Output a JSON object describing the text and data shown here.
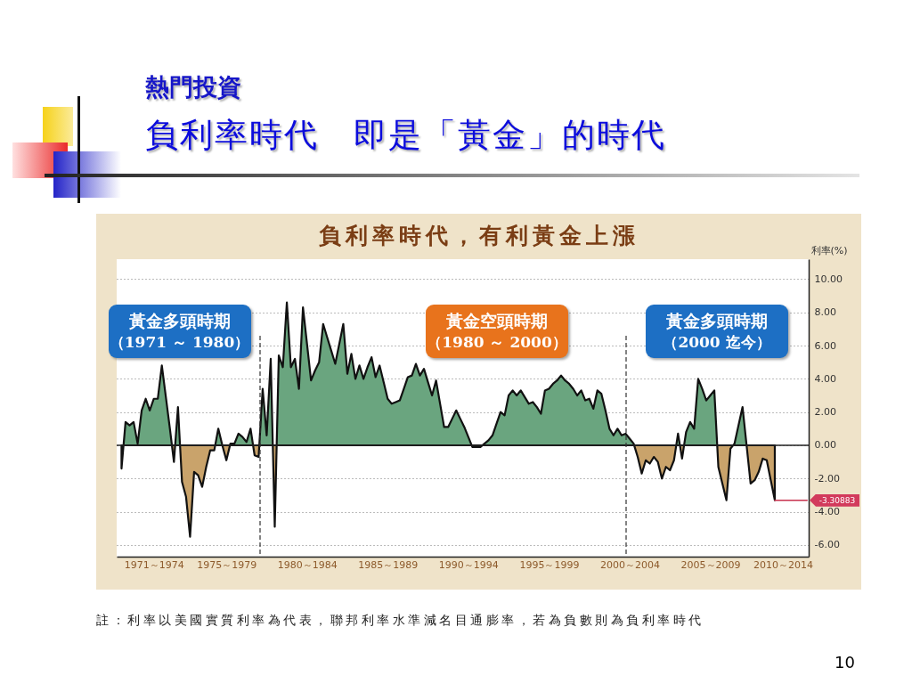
{
  "chart_data": {
    "type": "area",
    "title": "負利率時代　即是「黃金」的時代",
    "subtitle": "負利率時代，有利黃金上漲",
    "ylabel": "利率(%)",
    "categories": [
      null,
      null,
      null,
      null,
      null,
      null,
      null,
      null,
      "1971～1974",
      null,
      null,
      null,
      null,
      null,
      null,
      null,
      null,
      null,
      null,
      null,
      null,
      null,
      null,
      null,
      null,
      null,
      "1975～1979",
      null,
      null,
      null,
      null,
      null,
      null,
      null,
      null,
      null,
      null,
      null,
      null,
      null,
      null,
      null,
      null,
      null,
      null,
      null,
      "1980～1984",
      null,
      null,
      null,
      null,
      null,
      null,
      null,
      null,
      null,
      null,
      null,
      null,
      null,
      null,
      null,
      null,
      null,
      null,
      null,
      "1985～1989",
      null,
      null,
      null,
      null,
      null,
      null,
      null,
      null,
      null,
      null,
      null,
      null,
      null,
      null,
      null,
      null,
      null,
      null,
      null,
      "1990～1994",
      null,
      null,
      null,
      null,
      null,
      null,
      null,
      null,
      null,
      null,
      null,
      null,
      null,
      null,
      null,
      null,
      null,
      null,
      null,
      "1995～1999",
      null,
      null,
      null,
      null,
      null,
      null,
      null,
      null,
      null,
      null,
      null,
      null,
      null,
      null,
      null,
      null,
      null,
      null,
      null,
      "2000～2004",
      null,
      null,
      null,
      null,
      null,
      null,
      null,
      null,
      null,
      null,
      null,
      null,
      null,
      null,
      null,
      null,
      null,
      null,
      null,
      "2005～2009",
      null,
      null,
      null,
      null,
      null,
      null,
      null,
      null,
      null,
      null,
      null,
      null,
      null,
      null,
      null,
      null,
      null,
      "2010～2014",
      null,
      null,
      null,
      null,
      null,
      null
    ],
    "ylim": [
      -6.7,
      11.2
    ],
    "yticks": [
      {
        "value": -6,
        "label": "-6.00"
      },
      {
        "value": -4,
        "label": "-4.00"
      },
      {
        "value": -2,
        "label": "-2.00"
      },
      {
        "value": 0,
        "label": "0.00"
      },
      {
        "value": 2,
        "label": "2.00"
      },
      {
        "value": 4,
        "label": "4.00"
      },
      {
        "value": 6,
        "label": "6.00"
      },
      {
        "value": 8,
        "label": "8.00"
      },
      {
        "value": 10,
        "label": "10.00"
      }
    ],
    "grid": "y",
    "series": [
      {
        "color": "#111111",
        "colors": [
          "#c9a36b",
          "#6aa57f",
          "#6aa57f",
          "#6aa57f",
          "#6aa57f",
          "#6aa57f",
          "#6aa57f",
          "#6aa57f",
          "#6aa57f",
          "#6aa57f",
          "#6aa57f",
          "#6aa57f",
          "#6aa57f",
          "#c9a36b",
          "#6aa57f",
          "#c9a36b",
          "#c9a36b",
          "#c9a36b",
          "#c9a36b",
          "#c9a36b",
          "#c9a36b",
          "#c9a36b",
          "#c9a36b",
          "#c9a36b",
          "#6aa57f",
          "#c9a36b",
          "#c9a36b",
          "#6aa57f",
          "#6aa57f",
          "#6aa57f",
          "#6aa57f",
          "#6aa57f",
          "#6aa57f",
          "#c9a36b",
          "#c9a36b",
          "#6aa57f",
          "#6aa57f",
          "#6aa57f",
          "#c9a36b",
          "#6aa57f",
          "#6aa57f",
          "#6aa57f",
          "#6aa57f",
          "#6aa57f",
          "#6aa57f",
          "#6aa57f",
          "#6aa57f",
          "#6aa57f",
          "#6aa57f",
          "#6aa57f",
          "#6aa57f",
          "#6aa57f",
          "#6aa57f",
          "#6aa57f",
          "#6aa57f",
          "#6aa57f",
          "#6aa57f",
          "#6aa57f",
          "#6aa57f",
          "#6aa57f",
          "#6aa57f",
          "#6aa57f",
          "#6aa57f",
          "#6aa57f",
          "#6aa57f",
          "#6aa57f",
          "#6aa57f",
          "#6aa57f",
          "#6aa57f",
          "#6aa57f",
          "#6aa57f",
          "#6aa57f",
          "#6aa57f",
          "#6aa57f",
          "#6aa57f",
          "#6aa57f",
          "#6aa57f",
          "#6aa57f",
          "#6aa57f",
          "#6aa57f",
          "#6aa57f",
          "#6aa57f",
          "#6aa57f",
          "#6aa57f",
          "#6aa57f",
          "#6aa57f",
          "#6aa57f",
          "#c9a36b",
          "#c9a36b",
          "#c9a36b",
          "#6aa57f",
          "#6aa57f",
          "#6aa57f",
          "#6aa57f",
          "#6aa57f",
          "#6aa57f",
          "#6aa57f",
          "#6aa57f",
          "#6aa57f",
          "#6aa57f",
          "#6aa57f",
          "#6aa57f",
          "#6aa57f",
          "#6aa57f",
          "#6aa57f",
          "#6aa57f",
          "#6aa57f",
          "#6aa57f",
          "#6aa57f",
          "#6aa57f",
          "#6aa57f",
          "#6aa57f",
          "#6aa57f",
          "#6aa57f",
          "#6aa57f",
          "#6aa57f",
          "#6aa57f",
          "#6aa57f",
          "#6aa57f",
          "#6aa57f",
          "#6aa57f",
          "#6aa57f",
          "#6aa57f",
          "#6aa57f",
          "#6aa57f",
          "#6aa57f",
          "#6aa57f",
          "#6aa57f",
          "#c9a36b",
          "#c9a36b",
          "#c9a36b",
          "#c9a36b",
          "#c9a36b",
          "#c9a36b",
          "#c9a36b",
          "#c9a36b",
          "#c9a36b",
          "#c9a36b",
          "#6aa57f",
          "#c9a36b",
          "#6aa57f",
          "#6aa57f",
          "#6aa57f",
          "#6aa57f",
          "#6aa57f",
          "#6aa57f",
          "#6aa57f",
          "#6aa57f",
          "#c9a36b",
          "#c9a36b",
          "#c9a36b",
          "#c9a36b",
          "#6aa57f",
          "#6aa57f",
          "#6aa57f",
          "#c9a36b",
          "#c9a36b",
          "#c9a36b",
          "#c9a36b",
          "#c9a36b",
          "#c9a36b",
          "#c9a36b",
          "#c9a36b",
          null,
          null,
          null,
          null,
          null,
          null,
          null,
          null
        ],
        "values": [
          -1.4,
          1.4,
          1.2,
          1.4,
          0.1,
          2.1,
          2.8,
          2.1,
          2.8,
          2.8,
          4.8,
          2.9,
          1.0,
          -1.0,
          2.3,
          -2.2,
          -3.1,
          -5.5,
          -1.6,
          -1.8,
          -2.5,
          -1.3,
          -0.3,
          -0.3,
          1.0,
          0.0,
          -0.9,
          0.1,
          0.1,
          0.7,
          0.5,
          0.2,
          1.0,
          -0.6,
          -0.7,
          3.4,
          0.6,
          5.2,
          -4.9,
          5.4,
          4.7,
          8.6,
          4.7,
          5.2,
          3.4,
          8.3,
          6.1,
          3.9,
          4.5,
          5.0,
          7.3,
          6.5,
          5.7,
          4.9,
          6.1,
          7.3,
          4.3,
          5.5,
          4.0,
          4.8,
          4.0,
          4.7,
          5.3,
          4.1,
          4.8,
          3.8,
          2.8,
          2.5,
          2.6,
          2.7,
          3.4,
          4.1,
          4.2,
          4.9,
          4.2,
          4.6,
          3.8,
          3.0,
          3.9,
          2.5,
          1.1,
          1.1,
          1.6,
          2.1,
          1.6,
          1.1,
          0.5,
          -0.1,
          -0.1,
          -0.1,
          0.1,
          0.3,
          0.6,
          1.3,
          2.0,
          1.8,
          3.0,
          3.3,
          3.0,
          3.3,
          2.9,
          2.5,
          2.6,
          2.3,
          1.9,
          3.3,
          3.4,
          3.7,
          3.9,
          4.2,
          3.9,
          3.7,
          3.4,
          3.0,
          3.3,
          2.7,
          2.8,
          2.2,
          3.3,
          3.1,
          2.1,
          1.0,
          0.6,
          1.0,
          0.6,
          0.7,
          0.4,
          0.1,
          -0.7,
          -1.7,
          -0.9,
          -1.1,
          -0.7,
          -1.0,
          -2.0,
          -1.3,
          -1.5,
          -0.9,
          0.7,
          -0.8,
          0.8,
          1.4,
          1.0,
          4.0,
          3.4,
          2.7,
          3.0,
          3.3,
          -1.3,
          -2.3,
          -3.3,
          -0.2,
          0.1,
          1.2,
          2.3,
          0.0,
          -2.3,
          -2.1,
          -1.6,
          -0.8,
          -0.9,
          -2.1,
          -3.3,
          null,
          null,
          null,
          null,
          null,
          null,
          null,
          null
        ]
      },
      {
        "type": "line",
        "color": "#c8324e",
        "values": [
          null,
          null,
          null,
          null,
          null,
          null,
          null,
          null,
          null,
          null,
          null,
          null,
          null,
          null,
          null,
          null,
          null,
          null,
          null,
          null,
          null,
          null,
          null,
          null,
          null,
          null,
          null,
          null,
          null,
          null,
          null,
          null,
          null,
          null,
          null,
          null,
          null,
          null,
          null,
          null,
          null,
          null,
          null,
          null,
          null,
          null,
          null,
          null,
          null,
          null,
          null,
          null,
          null,
          null,
          null,
          null,
          null,
          null,
          null,
          null,
          null,
          null,
          null,
          null,
          null,
          null,
          null,
          null,
          null,
          null,
          null,
          null,
          null,
          null,
          null,
          null,
          null,
          null,
          null,
          null,
          null,
          null,
          null,
          null,
          null,
          null,
          null,
          null,
          null,
          null,
          null,
          null,
          null,
          null,
          null,
          null,
          null,
          null,
          null,
          null,
          null,
          null,
          null,
          null,
          null,
          null,
          null,
          null,
          null,
          null,
          null,
          null,
          null,
          null,
          null,
          null,
          null,
          null,
          null,
          null,
          null,
          null,
          null,
          null,
          null,
          null,
          null,
          null,
          null,
          null,
          null,
          null,
          null,
          null,
          null,
          null,
          null,
          null,
          null,
          null,
          null,
          null,
          null,
          null,
          null,
          null,
          null,
          null,
          null,
          null,
          null,
          null,
          null,
          null,
          null,
          null,
          null,
          null,
          null,
          null,
          null,
          null,
          -3.30883,
          -3.30883,
          -3.30883,
          -3.30883,
          -3.30883,
          -3.30883,
          -3.30883,
          -3.30883,
          -3.30883
        ]
      }
    ],
    "ref_lines": [
      {
        "axis": "y",
        "value": 0,
        "color": "#222222"
      }
    ],
    "annotations": [
      "熱門投資",
      "黃金多頭時期",
      "（1971 ～ 1980）",
      "黃金空頭時期",
      "（1980 ～ 2000）",
      "黃金多頭時期",
      "（2000 迄今）",
      "-3.30883",
      "註：利率以美國實質利率為代表，聯邦利率水準減名目通膨率，若為負數則為負利率時代",
      "10"
    ]
  }
}
